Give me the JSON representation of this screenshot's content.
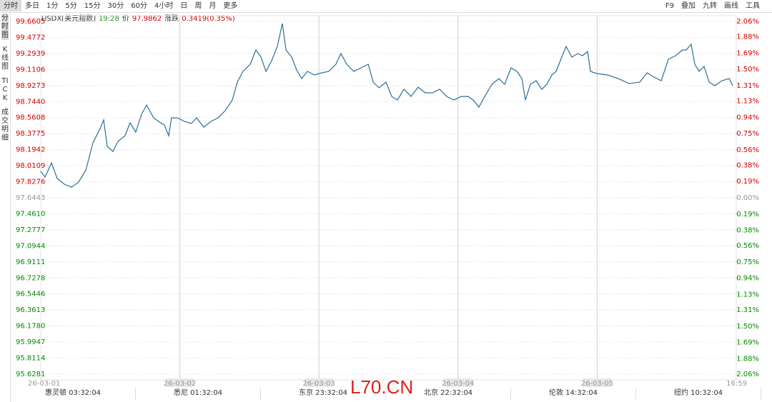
{
  "toolbar": {
    "periods": [
      "分时",
      "多日",
      "1分",
      "5分",
      "15分",
      "30分",
      "60分",
      "4小时",
      "日",
      "周",
      "月",
      "更多"
    ],
    "tools": [
      "F9",
      "叠加",
      "九转",
      "画线",
      "工具"
    ]
  },
  "sidebar": [
    "分时图",
    "K线图",
    "TICK",
    "成交明细"
  ],
  "quote": {
    "symbol": "USDX[美元指数]",
    "time": "19:28",
    "price_label": "价",
    "price": "97.9862",
    "change_label": "涨跌",
    "change": "0.3419(0.35%)"
  },
  "bottom_times": [
    "惠灵顿 03:32:04",
    "悉尼 01:32:04",
    "东京 23:32:04",
    "北京 22:32:04",
    "伦敦 14:32:04",
    "纽约 10:32:04"
  ],
  "watermark": "L70.CN",
  "chart_data": {
    "type": "line",
    "color": "#2a6f97",
    "up_color": "#d00000",
    "down_color": "#008a00",
    "flat_color": "#999999",
    "grid": true,
    "xlim": [
      0,
      5
    ],
    "xticks": [
      {
        "value": 0,
        "label": "26-03-01"
      },
      {
        "value": 1,
        "label": "26-03-02"
      },
      {
        "value": 2,
        "label": "26-03-03"
      },
      {
        "value": 3,
        "label": "26-03-04"
      },
      {
        "value": 4,
        "label": "26-03-05"
      },
      {
        "value": 5,
        "label": "16:59"
      }
    ],
    "ylim": [
      95.6281,
      99.6605
    ],
    "yticks": [
      99.6605,
      99.4772,
      99.2939,
      99.1106,
      98.9273,
      {
        "value": 98.744,
        "label": "98.7440"
      },
      98.5608,
      98.3775,
      98.1942,
      98.0109,
      97.8276,
      97.6443,
      {
        "value": 97.461,
        "label": "97.4610"
      },
      97.2777,
      97.0944,
      96.9111,
      96.7278,
      96.5446,
      96.3613,
      {
        "value": 96.178,
        "label": "96.1780"
      },
      95.9947,
      95.8114,
      95.6281
    ],
    "y2lim": [
      -2.06,
      2.06
    ],
    "y2ticks": [
      {
        "value": 2.06,
        "label": "2.06%"
      },
      {
        "value": 1.88,
        "label": "1.88%"
      },
      {
        "value": 1.69,
        "label": "1.69%"
      },
      {
        "value": 1.5,
        "label": "1.50%"
      },
      {
        "value": 1.31,
        "label": "1.31%"
      },
      {
        "value": 1.13,
        "label": "1.13%"
      },
      {
        "value": 0.94,
        "label": "0.94%"
      },
      {
        "value": 0.75,
        "label": "0.75%"
      },
      {
        "value": 0.56,
        "label": "0.56%"
      },
      {
        "value": 0.38,
        "label": "0.38%"
      },
      {
        "value": 0.19,
        "label": "0.19%"
      },
      {
        "value": 0,
        "label": "0.00%"
      },
      {
        "value": -0.19,
        "label": "0.19%"
      },
      {
        "value": -0.38,
        "label": "0.38%"
      },
      {
        "value": -0.56,
        "label": "0.56%"
      },
      {
        "value": -0.75,
        "label": "0.75%"
      },
      {
        "value": -0.94,
        "label": "0.94%"
      },
      {
        "value": -1.13,
        "label": "1.13%"
      },
      {
        "value": -1.31,
        "label": "1.31%"
      },
      {
        "value": -1.5,
        "label": "1.50%"
      },
      {
        "value": -1.69,
        "label": "1.69%"
      },
      {
        "value": -1.88,
        "label": "1.88%"
      },
      {
        "value": -2.06,
        "label": "2.06%"
      }
    ],
    "x": [
      0,
      0.031,
      0.077,
      0.118,
      0.17,
      0.221,
      0.272,
      0.324,
      0.375,
      0.427,
      0.452,
      0.478,
      0.519,
      0.555,
      0.606,
      0.642,
      0.683,
      0.725,
      0.761,
      0.812,
      0.848,
      0.889,
      0.92,
      0.94,
      0.982,
      1.033,
      1.084,
      1.12,
      1.172,
      1.223,
      1.274,
      1.326,
      1.377,
      1.413,
      1.454,
      1.506,
      1.547,
      1.583,
      1.619,
      1.66,
      1.701,
      1.737,
      1.763,
      1.804,
      1.84,
      1.876,
      1.917,
      1.968,
      2.02,
      2.071,
      2.122,
      2.158,
      2.2,
      2.251,
      2.302,
      2.354,
      2.39,
      2.431,
      2.482,
      2.523,
      2.564,
      2.611,
      2.662,
      2.713,
      2.765,
      2.816,
      2.868,
      2.919,
      2.97,
      3.022,
      3.073,
      3.109,
      3.15,
      3.192,
      3.243,
      3.294,
      3.335,
      3.381,
      3.423,
      3.459,
      3.484,
      3.52,
      3.561,
      3.602,
      3.638,
      3.674,
      3.705,
      3.741,
      3.777,
      3.818,
      3.859,
      3.895,
      3.931,
      3.952,
      3.998,
      4.075,
      4.152,
      4.229,
      4.307,
      4.358,
      4.409,
      4.461,
      4.512,
      4.563,
      4.614,
      4.64,
      4.676,
      4.702,
      4.733,
      4.769,
      4.805,
      4.846,
      4.897,
      4.949,
      4.975
    ],
    "values": [
      97.946,
      97.881,
      98.044,
      97.864,
      97.799,
      97.766,
      97.823,
      97.962,
      98.272,
      98.436,
      98.534,
      98.232,
      98.174,
      98.289,
      98.354,
      98.501,
      98.395,
      98.599,
      98.705,
      98.558,
      98.517,
      98.477,
      98.354,
      98.558,
      98.558,
      98.517,
      98.493,
      98.558,
      98.452,
      98.517,
      98.558,
      98.64,
      98.762,
      98.967,
      99.089,
      99.171,
      99.334,
      99.252,
      99.089,
      99.211,
      99.375,
      99.636,
      99.334,
      99.252,
      99.105,
      99.007,
      99.089,
      99.048,
      99.073,
      99.089,
      99.171,
      99.293,
      99.171,
      99.089,
      99.13,
      99.171,
      98.967,
      98.901,
      98.967,
      98.803,
      98.762,
      98.885,
      98.803,
      98.909,
      98.844,
      98.844,
      98.885,
      98.803,
      98.762,
      98.803,
      98.803,
      98.762,
      98.681,
      98.803,
      98.942,
      99.007,
      98.942,
      99.13,
      99.089,
      99.007,
      98.762,
      98.942,
      98.983,
      98.885,
      98.942,
      99.048,
      99.089,
      99.236,
      99.375,
      99.252,
      99.293,
      99.269,
      99.318,
      99.089,
      99.065,
      99.048,
      99.007,
      98.95,
      98.967,
      99.073,
      99.024,
      98.983,
      99.228,
      99.269,
      99.334,
      99.334,
      99.399,
      99.171,
      99.089,
      99.146,
      98.967,
      98.926,
      98.983,
      99.007,
      98.926
    ]
  }
}
